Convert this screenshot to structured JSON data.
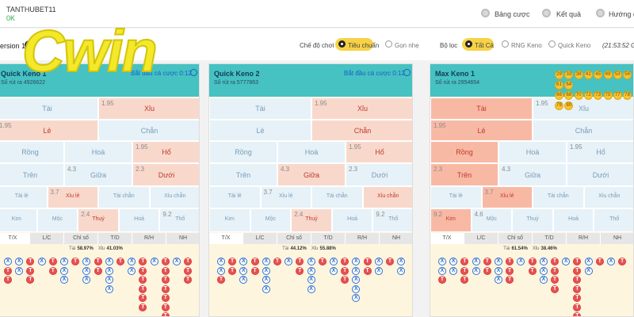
{
  "header": {
    "username": "TANTHUBET11",
    "balance": "0K",
    "nav": [
      "Bảng cược",
      "Kết quả",
      "Hướng dẫ"
    ]
  },
  "toolbar": {
    "version": "ersion 1",
    "logo": "Cwin",
    "mode_label": "Chế độ chơi",
    "modes": [
      "Tiêu chuẩn",
      "Gọn nhẹ"
    ],
    "filter_label": "Bộ lọc",
    "filters": [
      "Tất Cả",
      "RNG Keno",
      "Quick Keno"
    ],
    "clock": "(21:53:52 GT"
  },
  "panels": [
    {
      "title": "Quick Keno 1",
      "draw": "Số rút ra 4926622",
      "timer": "Bắt đầu cá cược 0:12",
      "header_color": "#45c2c1",
      "cell_color": "#e6f2f8",
      "win_color": "#f9d8cc",
      "rows": [
        [
          {
            "label": "Tài"
          },
          {
            "label": "Xỉu",
            "odds": "1.95",
            "win": true
          }
        ],
        [
          {
            "label": "Lẻ",
            "odds": "1.95",
            "win": true
          },
          {
            "label": "Chẵn"
          }
        ],
        [
          {
            "label": "Rồng"
          },
          {
            "label": "Hoà"
          },
          {
            "label": "Hổ",
            "odds": "1.95",
            "win": true
          }
        ],
        [
          {
            "label": "Trên"
          },
          {
            "label": "Giữa",
            "odds": "4.3"
          },
          {
            "label": "Dưới",
            "odds": "2.3",
            "win": true
          }
        ],
        [
          {
            "label": "Tài lẻ"
          },
          {
            "label": "Xỉu lẻ",
            "odds": "3.7",
            "win": true
          },
          {
            "label": "Tài chẵn"
          },
          {
            "label": "Xỉu chẵn"
          }
        ],
        [
          {
            "label": "Kim"
          },
          {
            "label": "Mộc"
          },
          {
            "label": "Thuỷ",
            "odds": "2.4",
            "win": true
          },
          {
            "label": "Hoả"
          },
          {
            "label": "Thổ",
            "odds": "9.2"
          }
        ]
      ],
      "tabs": [
        "T/X",
        "L/C",
        "Chỉ số",
        "T/D",
        "R/H",
        "NH"
      ],
      "stats": [
        {
          "name": "Tài",
          "value": "58.97%"
        },
        {
          "name": "Xỉu",
          "value": "41.03%"
        }
      ],
      "beads": [
        [
          "X",
          "T",
          "T"
        ],
        [
          "X",
          "X"
        ],
        [
          "T",
          "T",
          "T"
        ],
        [
          "X"
        ],
        [
          "T",
          "T"
        ],
        [
          "X",
          "X",
          "X"
        ],
        [
          "T"
        ],
        [
          "X",
          "X",
          "X"
        ],
        [
          "T",
          "T"
        ],
        [
          "X",
          "X",
          "X",
          "X"
        ],
        [
          "T"
        ],
        [
          "X",
          "X"
        ],
        [
          "T",
          "T",
          "T",
          "T",
          "T",
          "T"
        ],
        [
          "X"
        ],
        [
          "T",
          "T",
          "T",
          "T",
          "T",
          "T",
          "T"
        ],
        [
          "X"
        ],
        [
          "T",
          "T",
          "T"
        ]
      ]
    },
    {
      "title": "Quick Keno 2",
      "draw": "Số rút ra 5777863",
      "timer": "Bắt đầu cá cược 0:12",
      "header_color": "#45c2c1",
      "cell_color": "#e6f2f8",
      "win_color": "#f9d8cc",
      "rows": [
        [
          {
            "label": "Tài"
          },
          {
            "label": "Xỉu",
            "odds": "1.95",
            "win": true
          }
        ],
        [
          {
            "label": "Lẻ"
          },
          {
            "label": "Chẵn",
            "win": true
          }
        ],
        [
          {
            "label": "Rồng"
          },
          {
            "label": "Hoà"
          },
          {
            "label": "Hổ",
            "odds": "1.95",
            "win": true
          }
        ],
        [
          {
            "label": "Trên"
          },
          {
            "label": "Giữa",
            "odds": "4.3",
            "win": true
          },
          {
            "label": "Dưới",
            "odds": "2.3"
          }
        ],
        [
          {
            "label": "Tài lẻ"
          },
          {
            "label": "Xỉu lẻ",
            "odds": "3.7"
          },
          {
            "label": "Tài chẵn"
          },
          {
            "label": "Xỉu chẵn",
            "win": true
          }
        ],
        [
          {
            "label": "Kim"
          },
          {
            "label": "Mộc"
          },
          {
            "label": "Thuỷ",
            "odds": "2.4",
            "win": true
          },
          {
            "label": "Hoả"
          },
          {
            "label": "Thổ",
            "odds": "9.2"
          }
        ]
      ],
      "tabs": [
        "T/X",
        "L/C",
        "Chỉ số",
        "T/D",
        "R/H",
        "NH"
      ],
      "stats": [
        {
          "name": "Tài",
          "value": "44.12%"
        },
        {
          "name": "Xỉu",
          "value": "55.88%"
        }
      ],
      "beads": [
        [
          "X",
          "X",
          "T"
        ],
        [
          "T",
          "T"
        ],
        [
          "X",
          "X",
          "X"
        ],
        [
          "T",
          "T"
        ],
        [
          "X",
          "X",
          "X",
          "X"
        ],
        [
          "T"
        ],
        [
          "X"
        ],
        [
          "T",
          "T"
        ],
        [
          "X",
          "X",
          "X",
          "X"
        ],
        [
          "T"
        ],
        [
          "X",
          "X"
        ],
        [
          "T",
          "T",
          "T"
        ],
        [
          "X",
          "X",
          "X",
          "X",
          "X"
        ],
        [
          "T",
          "T"
        ],
        [
          "X",
          "X"
        ],
        [
          "T"
        ],
        [
          "X",
          "X"
        ]
      ]
    },
    {
      "title": "Max Keno 1",
      "draw": "Số rút ra 2954654",
      "header_color": "#45c2c1",
      "cell_color": "#e6f2f8",
      "win_color": "#f8b9a4",
      "rows": [
        [
          {
            "label": "Tài",
            "win": true
          },
          {
            "label": "Xỉu",
            "odds": "1.95"
          }
        ],
        [
          {
            "label": "Lẻ",
            "odds": "1.95",
            "win": true
          },
          {
            "label": "Chẵn"
          }
        ],
        [
          {
            "label": "Rồng",
            "win": true
          },
          {
            "label": "Hoà"
          },
          {
            "label": "Hổ",
            "odds": "1.95"
          }
        ],
        [
          {
            "label": "Trên",
            "odds": "2.3",
            "win": true
          },
          {
            "label": "Giữa",
            "odds": "4.3"
          },
          {
            "label": "Dưới"
          }
        ],
        [
          {
            "label": "Tài lẻ"
          },
          {
            "label": "Xỉu lẻ",
            "odds": "3.7",
            "win": true
          },
          {
            "label": "Tài chẵn"
          },
          {
            "label": "Xỉu chẵn"
          }
        ],
        [
          {
            "label": "Kim",
            "odds": "9.2",
            "win": true
          },
          {
            "label": "Mộc",
            "odds": "4.6"
          },
          {
            "label": "Thuỷ"
          },
          {
            "label": "Hoả"
          },
          {
            "label": "Thổ"
          }
        ]
      ],
      "tabs": [
        "T/X",
        "L/C",
        "Chỉ số",
        "T/D",
        "R/H",
        "NH"
      ],
      "stats": [
        {
          "name": "Tài",
          "value": "61.54%"
        },
        {
          "name": "Xỉu",
          "value": "38.46%"
        }
      ],
      "balls": [
        "29",
        "33",
        "38",
        "41",
        "45",
        "49",
        "53",
        "56",
        "61",
        "64",
        "66",
        "68",
        "70",
        "72",
        "73",
        "75",
        "77",
        "78",
        "79",
        "80"
      ],
      "beads": [
        [
          "X",
          "X",
          "T"
        ],
        [
          "X",
          "X"
        ],
        [
          "T",
          "T",
          "T"
        ],
        [
          "X",
          "X"
        ],
        [
          "T",
          "T"
        ],
        [
          "X",
          "X",
          "X"
        ],
        [
          "T",
          "T",
          "T"
        ],
        [
          "X"
        ],
        [
          "T",
          "T"
        ],
        [
          "X",
          "X",
          "X"
        ],
        [
          "T",
          "T",
          "T",
          "T"
        ],
        [
          "X"
        ],
        [
          "T",
          "T",
          "T",
          "T",
          "T",
          "T",
          "T",
          "T"
        ],
        [
          "X",
          "X"
        ],
        [
          "T"
        ],
        [
          "X"
        ],
        [
          "T"
        ]
      ]
    }
  ]
}
